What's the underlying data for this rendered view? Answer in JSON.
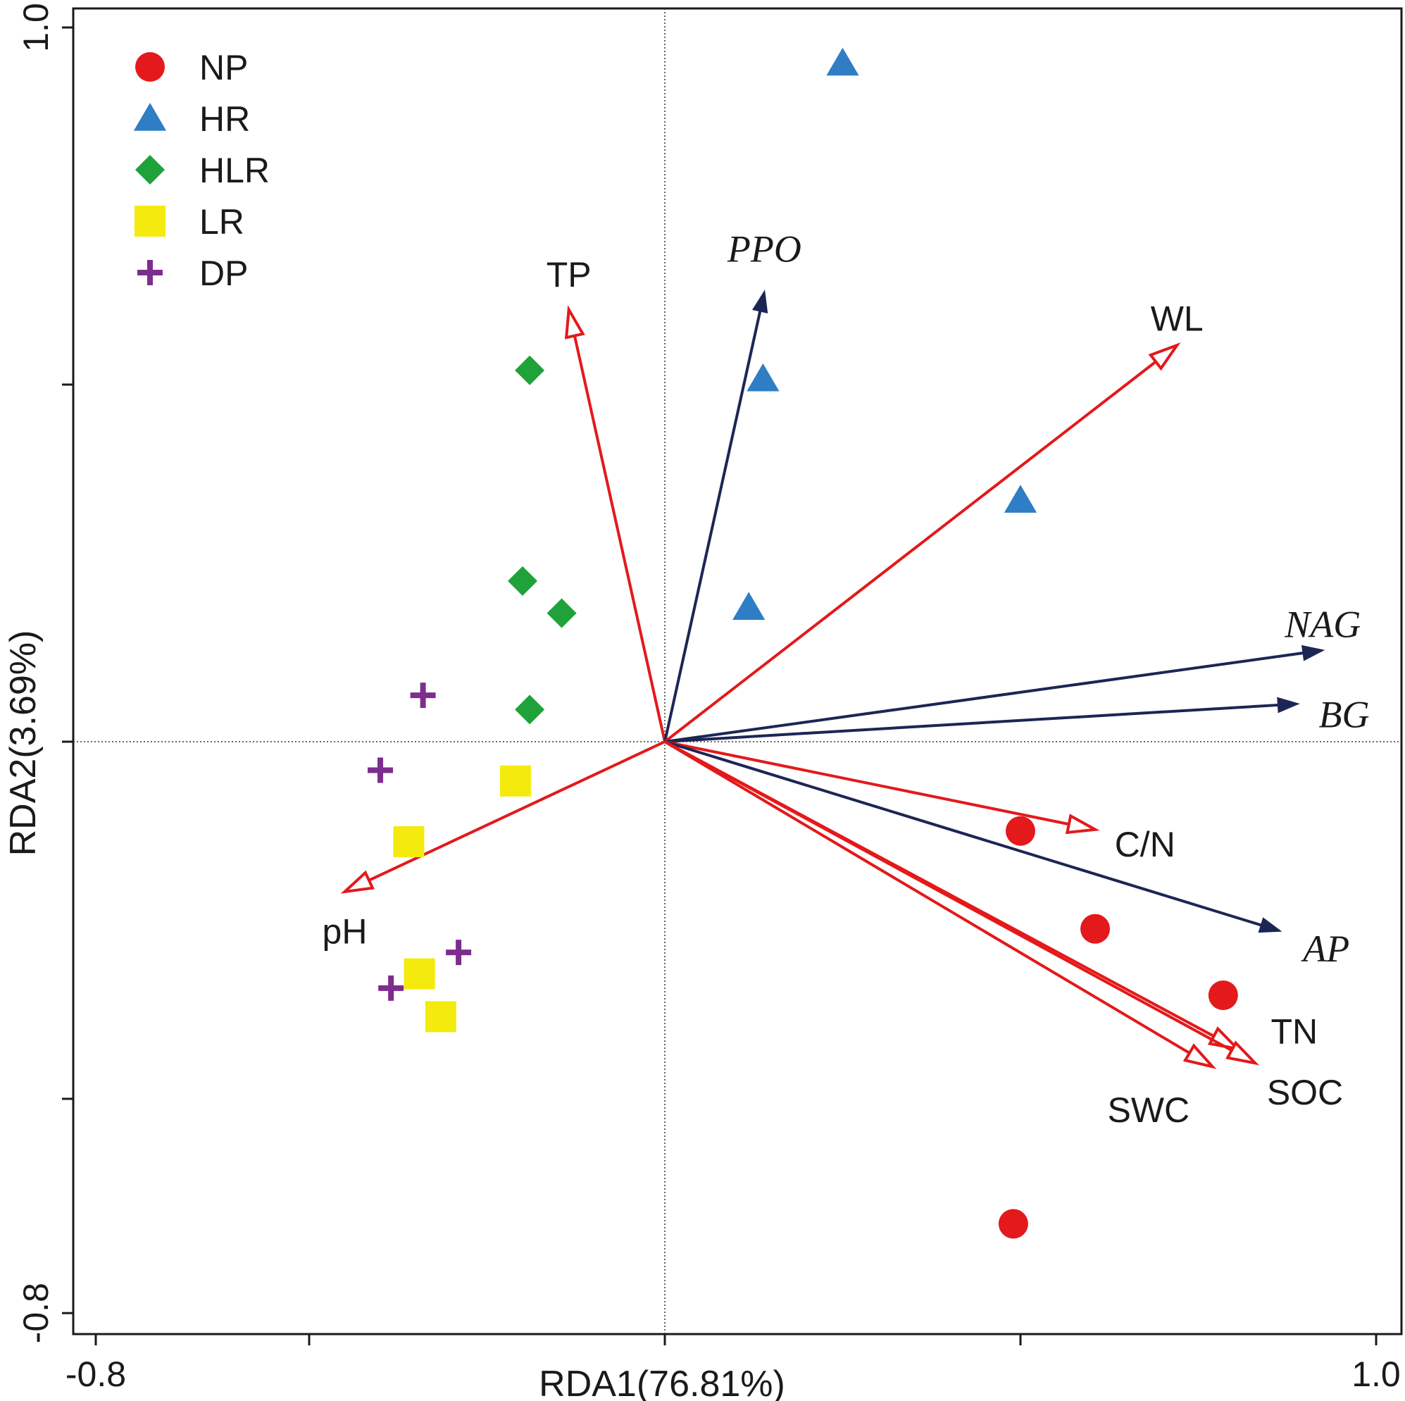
{
  "chart_data": {
    "type": "scatter",
    "subtype": "rda-biplot",
    "xlabel": "RDA1(76.81%)",
    "ylabel": "RDA2(3.69%)",
    "xlim": [
      -0.8,
      1.0
    ],
    "ylim": [
      -0.8,
      1.0
    ],
    "x_tick_labels": [
      {
        "value": -0.8,
        "label": "-0.8"
      },
      {
        "value": 1.0,
        "label": "1.0"
      }
    ],
    "y_tick_labels": [
      {
        "value": 1.0,
        "label": "1.0"
      },
      {
        "value": -0.8,
        "label": "-0.8"
      }
    ],
    "x_ticks": [
      -0.8,
      -0.5,
      0.0,
      0.5,
      1.0
    ],
    "y_ticks": [
      1.0,
      0.5,
      0.0,
      -0.5,
      -0.8
    ],
    "reference_lines": {
      "x": 0,
      "y": 0,
      "style": "dotted"
    },
    "legend": {
      "position": "top-left",
      "entries": [
        {
          "name": "NP",
          "marker": "circle",
          "color": "#e3191b"
        },
        {
          "name": "HR",
          "marker": "triangle",
          "color": "#2f7dc4"
        },
        {
          "name": "HLR",
          "marker": "diamond",
          "color": "#1fa23a"
        },
        {
          "name": "LR",
          "marker": "square",
          "color": "#f4ea0d"
        },
        {
          "name": "DP",
          "marker": "plus",
          "color": "#7d2d8e"
        }
      ]
    },
    "series": [
      {
        "name": "NP",
        "marker": "circle",
        "color": "#e3191b",
        "points": [
          [
            0.5,
            -0.125
          ],
          [
            0.605,
            -0.262
          ],
          [
            0.785,
            -0.355
          ],
          [
            0.49,
            -0.675
          ]
        ]
      },
      {
        "name": "HR",
        "marker": "triangle",
        "color": "#2f7dc4",
        "points": [
          [
            0.25,
            0.95
          ],
          [
            0.138,
            0.508
          ],
          [
            0.5,
            0.338
          ],
          [
            0.118,
            0.188
          ]
        ]
      },
      {
        "name": "HLR",
        "marker": "diamond",
        "color": "#1fa23a",
        "points": [
          [
            -0.19,
            0.52
          ],
          [
            -0.2,
            0.225
          ],
          [
            -0.145,
            0.18
          ],
          [
            -0.19,
            0.045
          ]
        ]
      },
      {
        "name": "LR",
        "marker": "square",
        "color": "#f4ea0d",
        "points": [
          [
            -0.21,
            -0.055
          ],
          [
            -0.36,
            -0.14
          ],
          [
            -0.345,
            -0.325
          ],
          [
            -0.315,
            -0.385
          ]
        ]
      },
      {
        "name": "DP",
        "marker": "plus",
        "color": "#7d2d8e",
        "points": [
          [
            -0.34,
            0.065
          ],
          [
            -0.4,
            -0.04
          ],
          [
            -0.29,
            -0.295
          ],
          [
            -0.385,
            -0.345
          ]
        ]
      }
    ],
    "vectors": [
      {
        "label": "TP",
        "x": -0.135,
        "y": 0.605,
        "color": "#e3191b",
        "head": "open",
        "italic": false,
        "label_dx": 0.0,
        "label_dy": 0.05
      },
      {
        "label": "PPO",
        "x": 0.14,
        "y": 0.63,
        "color": "#1c2655",
        "head": "solid",
        "italic": true,
        "label_dx": 0.0,
        "label_dy": 0.06
      },
      {
        "label": "WL",
        "x": 0.72,
        "y": 0.555,
        "color": "#e3191b",
        "head": "open",
        "italic": false,
        "label_dx": 0.0,
        "label_dy": 0.038
      },
      {
        "label": "NAG",
        "x": 0.925,
        "y": 0.128,
        "color": "#1c2655",
        "head": "solid",
        "italic": true,
        "label_dx": 0.0,
        "label_dy": 0.036
      },
      {
        "label": "BG",
        "x": 0.89,
        "y": 0.053,
        "color": "#1c2655",
        "head": "solid",
        "italic": true,
        "label_dx": 0.065,
        "label_dy": -0.015
      },
      {
        "label": "C/N",
        "x": 0.605,
        "y": -0.123,
        "color": "#e3191b",
        "head": "open",
        "italic": false,
        "label_dx": 0.07,
        "label_dy": -0.02
      },
      {
        "label": "AP",
        "x": 0.865,
        "y": -0.265,
        "color": "#1c2655",
        "head": "solid",
        "italic": true,
        "label_dx": 0.065,
        "label_dy": -0.025
      },
      {
        "label": "TN",
        "x": 0.805,
        "y": -0.43,
        "color": "#e3191b",
        "head": "open",
        "italic": false,
        "label_dx": 0.0,
        "label_dy": 0.0
      },
      {
        "label": "SWC",
        "x": 0.77,
        "y": -0.455,
        "color": "#e3191b",
        "head": "open",
        "italic": false,
        "label_dx": -0.09,
        "label_dy": -0.06
      },
      {
        "label": "SOC",
        "x": 0.83,
        "y": -0.45,
        "color": "#e3191b",
        "head": "open",
        "italic": false,
        "label_dx": 0.07,
        "label_dy": -0.04
      },
      {
        "label": "pH",
        "x": -0.45,
        "y": -0.21,
        "color": "#e3191b",
        "head": "open",
        "italic": false,
        "label_dx": 0.0,
        "label_dy": -0.055
      }
    ]
  }
}
